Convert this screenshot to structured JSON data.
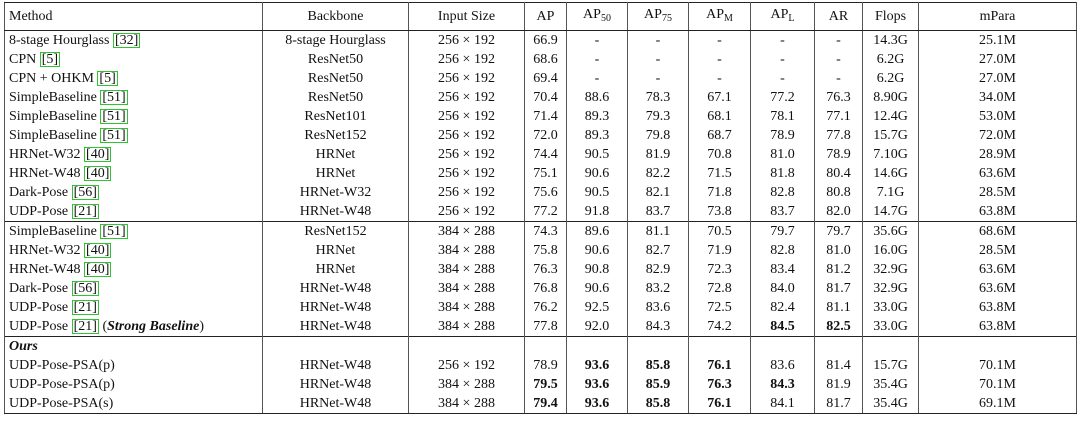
{
  "table": {
    "header": [
      "Method",
      "Backbone",
      "Input Size",
      "AP",
      {
        "text": "AP",
        "sub": "50"
      },
      {
        "text": "AP",
        "sub": "75"
      },
      {
        "text": "AP",
        "sub": "M"
      },
      {
        "text": "AP",
        "sub": "L"
      },
      "AR",
      "Flops",
      "mPara"
    ],
    "groups": [
      {
        "rows": [
          {
            "method": "8-stage Hourglass",
            "cite": "[32]",
            "cells": [
              "8-stage Hourglass",
              "256 × 192",
              "66.9",
              "-",
              "-",
              "-",
              "-",
              "-",
              "14.3G",
              "25.1M"
            ],
            "bold": []
          },
          {
            "method": "CPN",
            "cite": "[5]",
            "cells": [
              "ResNet50",
              "256 × 192",
              "68.6",
              "-",
              "-",
              "-",
              "-",
              "-",
              "6.2G",
              "27.0M"
            ],
            "bold": []
          },
          {
            "method": "CPN + OHKM",
            "cite": "[5]",
            "cells": [
              "ResNet50",
              "256 × 192",
              "69.4",
              "-",
              "-",
              "-",
              "-",
              "-",
              "6.2G",
              "27.0M"
            ],
            "bold": []
          },
          {
            "method": "SimpleBaseline",
            "cite": "[51]",
            "cells": [
              "ResNet50",
              "256 × 192",
              "70.4",
              "88.6",
              "78.3",
              "67.1",
              "77.2",
              "76.3",
              "8.90G",
              "34.0M"
            ],
            "bold": []
          },
          {
            "method": "SimpleBaseline",
            "cite": "[51]",
            "cells": [
              "ResNet101",
              "256 × 192",
              "71.4",
              "89.3",
              "79.3",
              "68.1",
              "78.1",
              "77.1",
              "12.4G",
              "53.0M"
            ],
            "bold": []
          },
          {
            "method": "SimpleBaseline",
            "cite": "[51]",
            "cells": [
              "ResNet152",
              "256 × 192",
              "72.0",
              "89.3",
              "79.8",
              "68.7",
              "78.9",
              "77.8",
              "15.7G",
              "72.0M"
            ],
            "bold": []
          },
          {
            "method": "HRNet-W32",
            "cite": "[40]",
            "cells": [
              "HRNet",
              "256 × 192",
              "74.4",
              "90.5",
              "81.9",
              "70.8",
              "81.0",
              "78.9",
              "7.10G",
              "28.9M"
            ],
            "bold": []
          },
          {
            "method": "HRNet-W48",
            "cite": "[40]",
            "cells": [
              "HRNet",
              "256 × 192",
              "75.1",
              "90.6",
              "82.2",
              "71.5",
              "81.8",
              "80.4",
              "14.6G",
              "63.6M"
            ],
            "bold": []
          },
          {
            "method": "Dark-Pose",
            "cite": "[56]",
            "cells": [
              "HRNet-W32",
              "256 × 192",
              "75.6",
              "90.5",
              "82.1",
              "71.8",
              "82.8",
              "80.8",
              "7.1G",
              "28.5M"
            ],
            "bold": []
          },
          {
            "method": "UDP-Pose",
            "cite": "[21]",
            "cells": [
              "HRNet-W48",
              "256 × 192",
              "77.2",
              "91.8",
              "83.7",
              "73.8",
              "83.7",
              "82.0",
              "14.7G",
              "63.8M"
            ],
            "bold": []
          }
        ]
      },
      {
        "rows": [
          {
            "method": "SimpleBaseline",
            "cite": "[51]",
            "cells": [
              "ResNet152",
              "384 × 288",
              "74.3",
              "89.6",
              "81.1",
              "70.5",
              "79.7",
              "79.7",
              "35.6G",
              "68.6M"
            ],
            "bold": []
          },
          {
            "method": "HRNet-W32",
            "cite": "[40]",
            "cells": [
              "HRNet",
              "384 × 288",
              "75.8",
              "90.6",
              "82.7",
              "71.9",
              "82.8",
              "81.0",
              "16.0G",
              "28.5M"
            ],
            "bold": []
          },
          {
            "method": "HRNet-W48",
            "cite": "[40]",
            "cells": [
              "HRNet",
              "384 × 288",
              "76.3",
              "90.8",
              "82.9",
              "72.3",
              "83.4",
              "81.2",
              "32.9G",
              "63.6M"
            ],
            "bold": []
          },
          {
            "method": "Dark-Pose",
            "cite": "[56]",
            "cells": [
              "HRNet-W48",
              "384 × 288",
              "76.8",
              "90.6",
              "83.2",
              "72.8",
              "84.0",
              "81.7",
              "32.9G",
              "63.6M"
            ],
            "bold": []
          },
          {
            "method": "UDP-Pose",
            "cite": "[21]",
            "cells": [
              "HRNet-W48",
              "384 × 288",
              "76.2",
              "92.5",
              "83.6",
              "72.5",
              "82.4",
              "81.1",
              "33.0G",
              "63.8M"
            ],
            "bold": []
          },
          {
            "method": "UDP-Pose",
            "cite": "[21]",
            "note": [
              "(",
              "Strong Baseline",
              ")"
            ],
            "cells": [
              "HRNet-W48",
              "384 × 288",
              "77.8",
              "92.0",
              "84.3",
              "74.2",
              "84.5",
              "82.5",
              "33.0G",
              "63.8M"
            ],
            "bold": [
              6,
              7
            ]
          }
        ]
      },
      {
        "label": "Ours",
        "rows": [
          {
            "method": "UDP-Pose-PSA(p)",
            "cells": [
              "HRNet-W48",
              "256 × 192",
              "78.9",
              "93.6",
              "85.8",
              "76.1",
              "83.6",
              "81.4",
              "15.7G",
              "70.1M"
            ],
            "bold": [
              3,
              4,
              5
            ]
          },
          {
            "method": "UDP-Pose-PSA(p)",
            "cells": [
              "HRNet-W48",
              "384 × 288",
              "79.5",
              "93.6",
              "85.9",
              "76.3",
              "84.3",
              "81.9",
              "35.4G",
              "70.1M"
            ],
            "bold": [
              2,
              3,
              4,
              5,
              6
            ]
          },
          {
            "method": "UDP-Pose-PSA(s)",
            "cells": [
              "HRNet-W48",
              "384 × 288",
              "79.4",
              "93.6",
              "85.8",
              "76.1",
              "84.1",
              "81.7",
              "35.4G",
              "69.1M"
            ],
            "bold": [
              2,
              3,
              4,
              5
            ]
          }
        ]
      }
    ]
  }
}
